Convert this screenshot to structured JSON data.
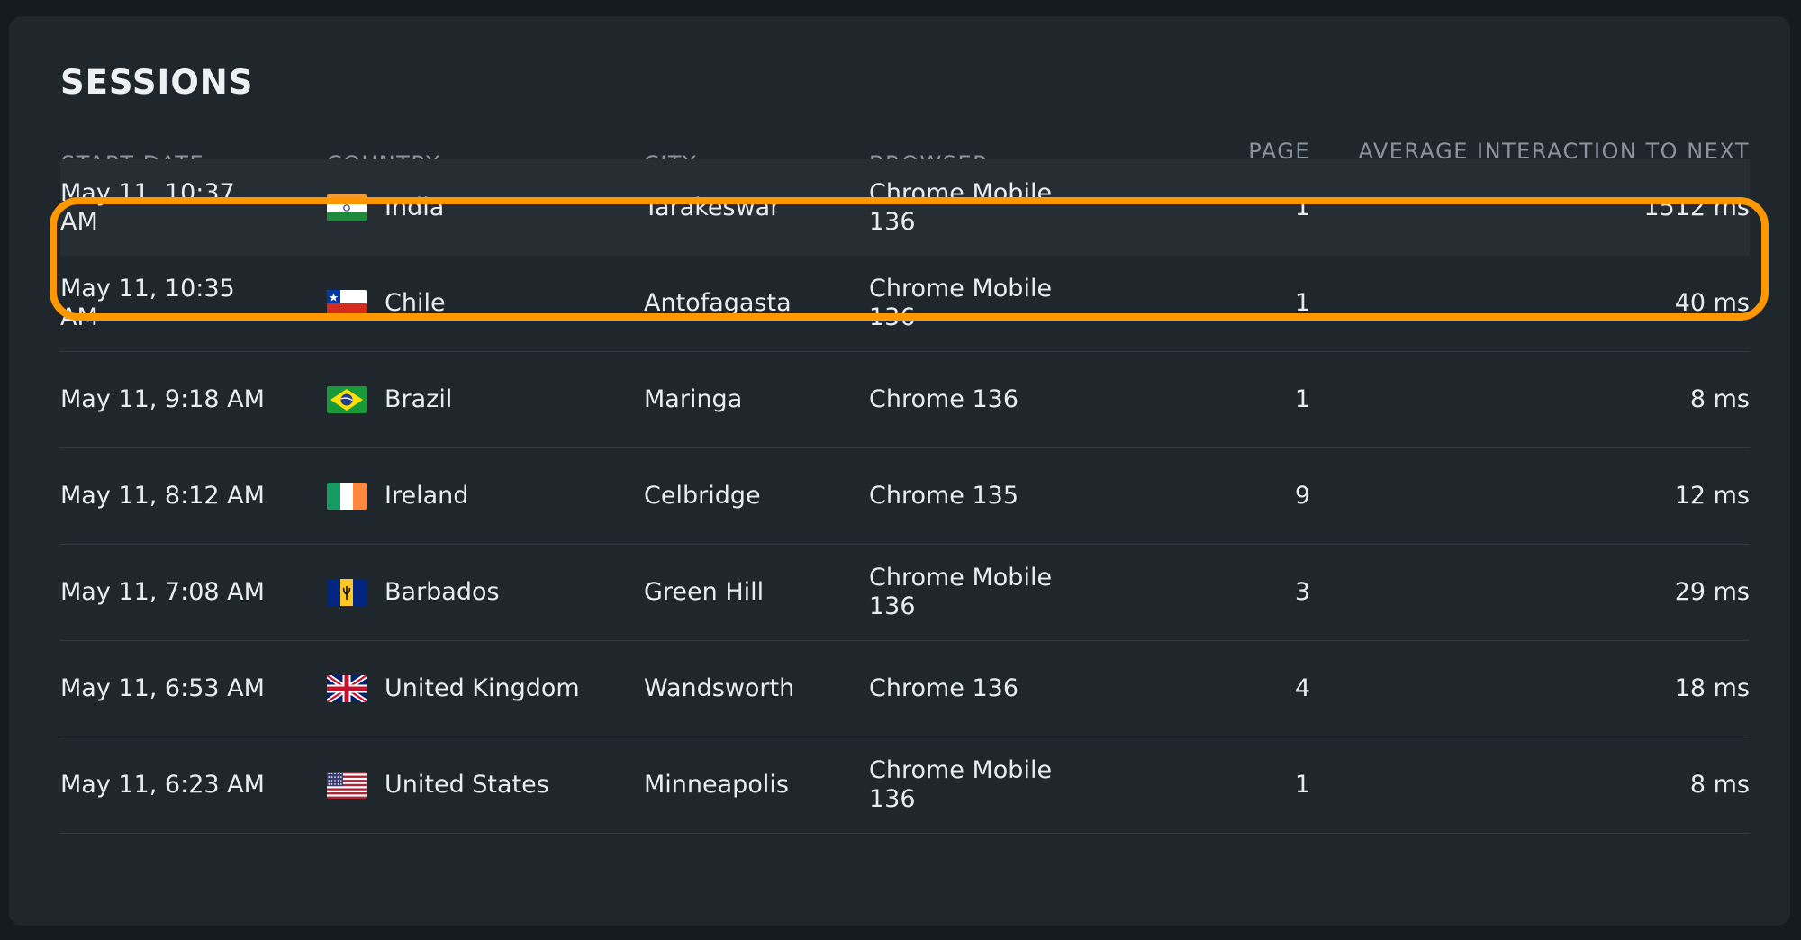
{
  "title": "SESSIONS",
  "columns": {
    "start_date": "START DATE",
    "country": "COUNTRY",
    "city": "CITY",
    "browser": "BROWSER",
    "page_views": "PAGE VIEWS",
    "inp": "AVERAGE INTERACTION TO NEXT PAINT"
  },
  "highlight_color": "#ff9800",
  "rows": [
    {
      "start_date": "May 11, 10:37 AM",
      "country": "India",
      "flag": "india-flag-icon",
      "city": "Tarakeswar",
      "browser": "Chrome Mobile 136",
      "page_views": "1",
      "inp": "1512 ms"
    },
    {
      "start_date": "May 11, 10:35 AM",
      "country": "Chile",
      "flag": "chile-flag-icon",
      "city": "Antofagasta",
      "browser": "Chrome Mobile 136",
      "page_views": "1",
      "inp": "40 ms"
    },
    {
      "start_date": "May 11, 9:18 AM",
      "country": "Brazil",
      "flag": "brazil-flag-icon",
      "city": "Maringa",
      "browser": "Chrome 136",
      "page_views": "1",
      "inp": "8 ms"
    },
    {
      "start_date": "May 11, 8:12 AM",
      "country": "Ireland",
      "flag": "ireland-flag-icon",
      "city": "Celbridge",
      "browser": "Chrome 135",
      "page_views": "9",
      "inp": "12 ms"
    },
    {
      "start_date": "May 11, 7:08 AM",
      "country": "Barbados",
      "flag": "barbados-flag-icon",
      "city": "Green Hill",
      "browser": "Chrome Mobile 136",
      "page_views": "3",
      "inp": "29 ms"
    },
    {
      "start_date": "May 11, 6:53 AM",
      "country": "United Kingdom",
      "flag": "uk-flag-icon",
      "city": "Wandsworth",
      "browser": "Chrome 136",
      "page_views": "4",
      "inp": "18 ms"
    },
    {
      "start_date": "May 11, 6:23 AM",
      "country": "United States",
      "flag": "us-flag-icon",
      "city": "Minneapolis",
      "browser": "Chrome Mobile 136",
      "page_views": "1",
      "inp": "8 ms"
    }
  ]
}
